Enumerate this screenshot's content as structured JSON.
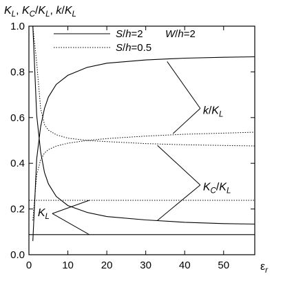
{
  "chart_data": {
    "type": "line",
    "title": "",
    "ylabel_parts": [
      {
        "t": "K",
        "italic": true
      },
      {
        "t": "L",
        "sub": true,
        "italic": true
      },
      {
        "t": ", "
      },
      {
        "t": "K",
        "italic": true
      },
      {
        "t": "C",
        "sub": true,
        "italic": true
      },
      {
        "t": "/"
      },
      {
        "t": "K",
        "italic": true
      },
      {
        "t": "L",
        "sub": true,
        "italic": true
      },
      {
        "t": ", "
      },
      {
        "t": "k",
        "italic": true
      },
      {
        "t": "/"
      },
      {
        "t": "K",
        "italic": true
      },
      {
        "t": "L",
        "sub": true,
        "italic": true
      }
    ],
    "xlabel_parts": [
      {
        "t": "ε"
      },
      {
        "t": "r",
        "sub": true,
        "italic": true
      }
    ],
    "xlim": [
      0,
      58
    ],
    "ylim": [
      0,
      1.0
    ],
    "xticks": [
      0,
      10,
      20,
      30,
      40,
      50
    ],
    "xtick_labels": [
      "0",
      "10",
      "20",
      "30",
      "40",
      "50"
    ],
    "yticks": [
      0,
      0.2,
      0.4,
      0.6,
      0.8,
      1.0
    ],
    "ytick_labels": [
      "0.0",
      "0.2",
      "0.4",
      "0.6",
      "0.8",
      "1.0"
    ],
    "grid": false,
    "legend": {
      "position": "top",
      "entries": [
        {
          "style": "solid",
          "label_parts": [
            {
              "t": "S",
              "italic": true
            },
            {
              "t": "/"
            },
            {
              "t": "h",
              "italic": true
            },
            {
              "t": "=2"
            }
          ]
        },
        {
          "style": "dotted",
          "label_parts": [
            {
              "t": "S",
              "italic": true
            },
            {
              "t": "/"
            },
            {
              "t": "h",
              "italic": true
            },
            {
              "t": "=0.5"
            }
          ]
        }
      ],
      "note_parts": [
        {
          "t": "W",
          "italic": true
        },
        {
          "t": "/"
        },
        {
          "t": "h",
          "italic": true
        },
        {
          "t": "=2"
        }
      ]
    },
    "series": [
      {
        "id": "k_over_KL_S2",
        "style": "solid",
        "x": [
          1,
          2,
          3,
          4,
          5,
          7,
          10,
          15,
          20,
          30,
          40,
          50,
          58
        ],
        "y": [
          0.06,
          0.42,
          0.56,
          0.64,
          0.69,
          0.745,
          0.785,
          0.82,
          0.838,
          0.852,
          0.86,
          0.864,
          0.866
        ]
      },
      {
        "id": "KC_over_KL_S2",
        "style": "solid",
        "x": [
          1,
          2,
          3,
          4,
          5,
          7,
          10,
          15,
          20,
          30,
          40,
          50,
          58
        ],
        "y": [
          1.0,
          0.61,
          0.45,
          0.36,
          0.31,
          0.255,
          0.215,
          0.185,
          0.167,
          0.152,
          0.142,
          0.136,
          0.134
        ]
      },
      {
        "id": "KL_S2",
        "style": "solid",
        "x": [
          0,
          58
        ],
        "y": [
          0.088,
          0.088
        ]
      },
      {
        "id": "k_over_KL_S05",
        "style": "dotted",
        "x": [
          1,
          2,
          3,
          4,
          5,
          7,
          10,
          15,
          20,
          30,
          40,
          50,
          58
        ],
        "y": [
          0.15,
          0.35,
          0.415,
          0.445,
          0.46,
          0.475,
          0.488,
          0.5,
          0.508,
          0.519,
          0.527,
          0.532,
          0.536
        ]
      },
      {
        "id": "KC_over_KL_S05",
        "style": "dotted",
        "x": [
          1,
          2,
          3,
          4,
          5,
          7,
          10,
          15,
          20,
          30,
          40,
          50,
          58
        ],
        "y": [
          1.0,
          0.84,
          0.64,
          0.57,
          0.545,
          0.525,
          0.51,
          0.5,
          0.495,
          0.486,
          0.481,
          0.478,
          0.476
        ]
      },
      {
        "id": "KL_S05",
        "style": "dotted",
        "x": [
          0,
          58
        ],
        "y": [
          0.238,
          0.238
        ]
      }
    ],
    "annotations": [
      {
        "id": "k-over-kl",
        "label_parts": [
          {
            "t": "k",
            "italic": true
          },
          {
            "t": "/"
          },
          {
            "t": "K",
            "italic": true
          },
          {
            "t": "L",
            "sub": true,
            "italic": true
          }
        ],
        "at": [
          44,
          0.64
        ],
        "arrows": [
          [
            35.5,
            0.845
          ],
          [
            37,
            0.53
          ]
        ]
      },
      {
        "id": "kc-over-kl",
        "label_parts": [
          {
            "t": "K",
            "italic": true
          },
          {
            "t": "C",
            "sub": true,
            "italic": true
          },
          {
            "t": "/"
          },
          {
            "t": "K",
            "italic": true
          },
          {
            "t": "L",
            "sub": true,
            "italic": true
          }
        ],
        "at": [
          44,
          0.305
        ],
        "arrows": [
          [
            33,
            0.478
          ],
          [
            33,
            0.15
          ]
        ]
      },
      {
        "id": "kl",
        "label_parts": [
          {
            "t": "K",
            "italic": true
          },
          {
            "t": "L",
            "sub": true,
            "italic": true
          }
        ],
        "at": [
          6,
          0.18
        ],
        "arrows": [
          [
            15.5,
            0.238
          ],
          [
            15.5,
            0.088
          ]
        ]
      }
    ]
  }
}
